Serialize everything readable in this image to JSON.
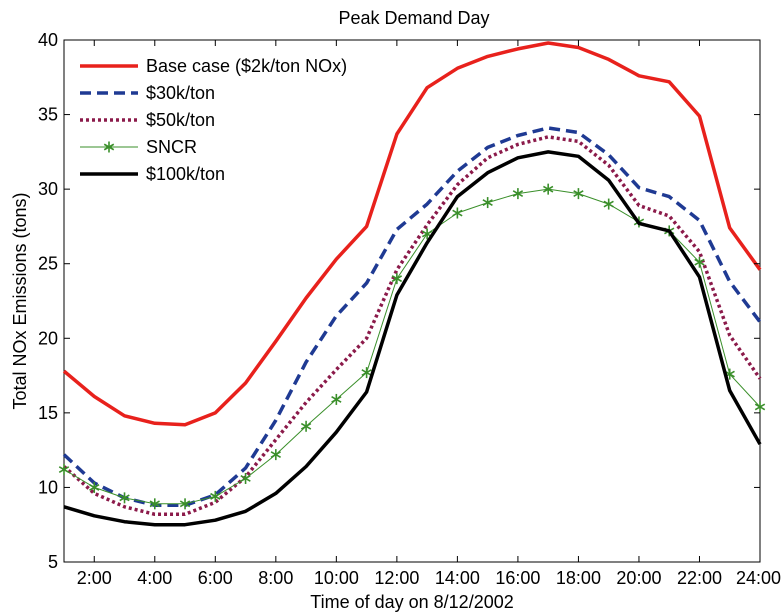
{
  "chart_data": {
    "type": "line",
    "title": "Peak Demand Day",
    "xlabel": "Time of day on 8/12/2002",
    "ylabel": "Total NOx Emissions (tons)",
    "xlim": [
      1,
      24
    ],
    "ylim": [
      5,
      40
    ],
    "x": [
      1,
      2,
      3,
      4,
      5,
      6,
      7,
      8,
      9,
      10,
      11,
      12,
      13,
      14,
      15,
      16,
      17,
      18,
      19,
      20,
      21,
      22,
      23,
      24
    ],
    "xtick_values": [
      2,
      4,
      6,
      8,
      10,
      12,
      14,
      16,
      18,
      20,
      22,
      24
    ],
    "xtick_labels": [
      "2:00",
      "4:00",
      "6:00",
      "8:00",
      "10:00",
      "12:00",
      "14:00",
      "16:00",
      "18:00",
      "20:00",
      "22:00",
      "24:00"
    ],
    "ytick_values": [
      5,
      10,
      15,
      20,
      25,
      30,
      35,
      40
    ],
    "ytick_labels": [
      "5",
      "10",
      "15",
      "20",
      "25",
      "30",
      "35",
      "40"
    ],
    "grid": false,
    "legend_position": "top-left",
    "series": [
      {
        "name": "Base case ($2k/ton NOx)",
        "color": "#e8211c",
        "style": "solid",
        "marker": "none",
        "values": [
          17.8,
          16.1,
          14.8,
          14.3,
          14.2,
          15.0,
          17.0,
          19.8,
          22.7,
          25.3,
          27.5,
          33.7,
          36.8,
          38.1,
          38.9,
          39.4,
          39.8,
          39.5,
          38.7,
          37.6,
          37.2,
          34.9,
          27.4,
          24.6
        ]
      },
      {
        "name": "$30k/ton",
        "color": "#1f3a93",
        "style": "dashed",
        "marker": "none",
        "values": [
          12.2,
          10.3,
          9.3,
          8.8,
          8.8,
          9.5,
          11.3,
          14.5,
          18.4,
          21.5,
          23.7,
          27.3,
          29.0,
          31.2,
          32.8,
          33.6,
          34.1,
          33.8,
          32.3,
          30.1,
          29.5,
          27.9,
          23.8,
          21.1
        ]
      },
      {
        "name": "$50k/ton",
        "color": "#8b1a4a",
        "style": "dotted",
        "marker": "none",
        "values": [
          11.4,
          9.6,
          8.7,
          8.2,
          8.2,
          9.0,
          10.7,
          13.2,
          15.7,
          17.9,
          20.0,
          24.6,
          27.6,
          30.3,
          32.1,
          33.0,
          33.5,
          33.2,
          31.6,
          28.9,
          28.2,
          25.8,
          20.2,
          17.3
        ]
      },
      {
        "name": "SNCR",
        "color": "#3a8f2a",
        "style": "solid",
        "marker": "star",
        "values": [
          11.2,
          10.0,
          9.3,
          8.9,
          8.9,
          9.4,
          10.6,
          12.2,
          14.1,
          15.9,
          17.7,
          24.0,
          27.0,
          28.4,
          29.1,
          29.7,
          30.0,
          29.7,
          29.0,
          27.8,
          27.2,
          25.1,
          17.6,
          15.4
        ]
      },
      {
        "name": "$100k/ton",
        "color": "#000000",
        "style": "solid",
        "marker": "none",
        "values": [
          8.7,
          8.1,
          7.7,
          7.5,
          7.5,
          7.8,
          8.4,
          9.6,
          11.4,
          13.7,
          16.4,
          22.9,
          26.4,
          29.5,
          31.1,
          32.1,
          32.5,
          32.2,
          30.6,
          27.7,
          27.2,
          24.1,
          16.5,
          12.9
        ]
      }
    ]
  }
}
